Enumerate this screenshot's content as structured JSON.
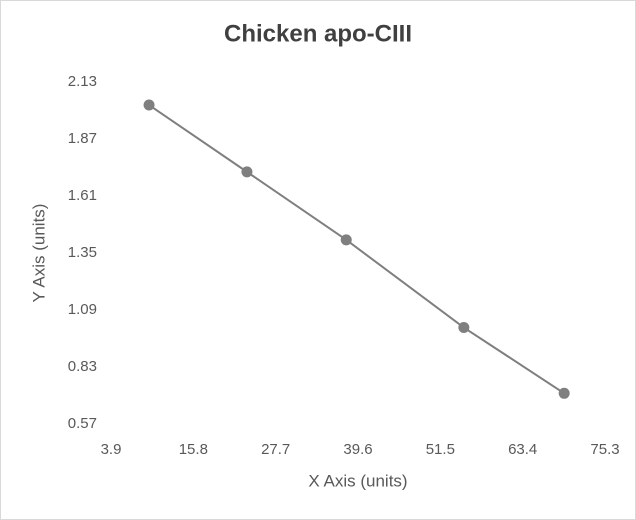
{
  "chart_data": {
    "type": "scatter",
    "title": "Chicken apo-CIII",
    "x_label": "X Axis (units)",
    "y_label": "Y Axis (units)",
    "x": [
      9.4,
      23.55,
      37.9,
      54.9,
      69.4
    ],
    "values": [
      2.025,
      1.72,
      1.41,
      1.01,
      0.71
    ],
    "color": "#7f7f7f",
    "xlim": [
      3.9,
      75.3
    ],
    "xticks": [
      3.9,
      15.8,
      27.7,
      39.6,
      51.5,
      63.4,
      75.3
    ],
    "ylim": [
      0.57,
      2.13
    ],
    "yticks": [
      0.57,
      0.83,
      1.09,
      1.35,
      1.61,
      1.87,
      2.13
    ],
    "grid": false
  }
}
